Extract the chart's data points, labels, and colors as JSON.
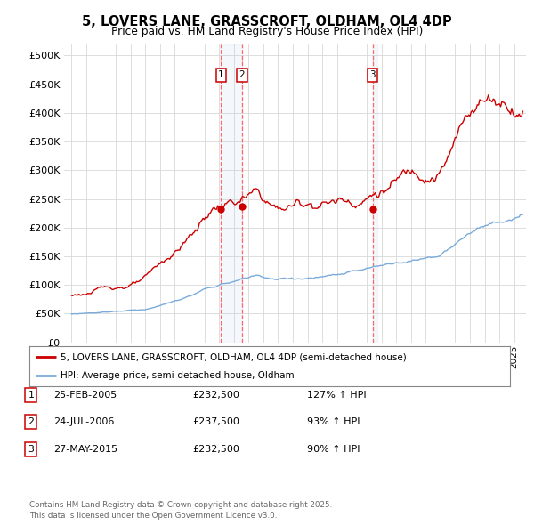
{
  "title1": "5, LOVERS LANE, GRASSCROFT, OLDHAM, OL4 4DP",
  "title2": "Price paid vs. HM Land Registry's House Price Index (HPI)",
  "legend_property": "5, LOVERS LANE, GRASSCROFT, OLDHAM, OL4 4DP (semi-detached house)",
  "legend_hpi": "HPI: Average price, semi-detached house, Oldham",
  "footer": "Contains HM Land Registry data © Crown copyright and database right 2025.\nThis data is licensed under the Open Government Licence v3.0.",
  "transactions": [
    {
      "num": 1,
      "date": "25-FEB-2005",
      "price": 232500,
      "hpi_pct": "127% ↑ HPI",
      "year": 2005.14
    },
    {
      "num": 2,
      "date": "24-JUL-2006",
      "price": 237500,
      "hpi_pct": "93% ↑ HPI",
      "year": 2006.56
    },
    {
      "num": 3,
      "date": "27-MAY-2015",
      "price": 232500,
      "hpi_pct": "90% ↑ HPI",
      "year": 2015.4
    }
  ],
  "property_color": "#cc0000",
  "hpi_color": "#7aabdb",
  "vline_color": "#ff6666",
  "background_color": "#ffffff",
  "ylim": [
    0,
    520000
  ],
  "yticks": [
    0,
    50000,
    100000,
    150000,
    200000,
    250000,
    300000,
    350000,
    400000,
    450000,
    500000
  ],
  "ytick_labels": [
    "£0",
    "£50K",
    "£100K",
    "£150K",
    "£200K",
    "£250K",
    "£300K",
    "£350K",
    "£400K",
    "£450K",
    "£500K"
  ],
  "xlim_start": 1994.5,
  "xlim_end": 2025.8
}
